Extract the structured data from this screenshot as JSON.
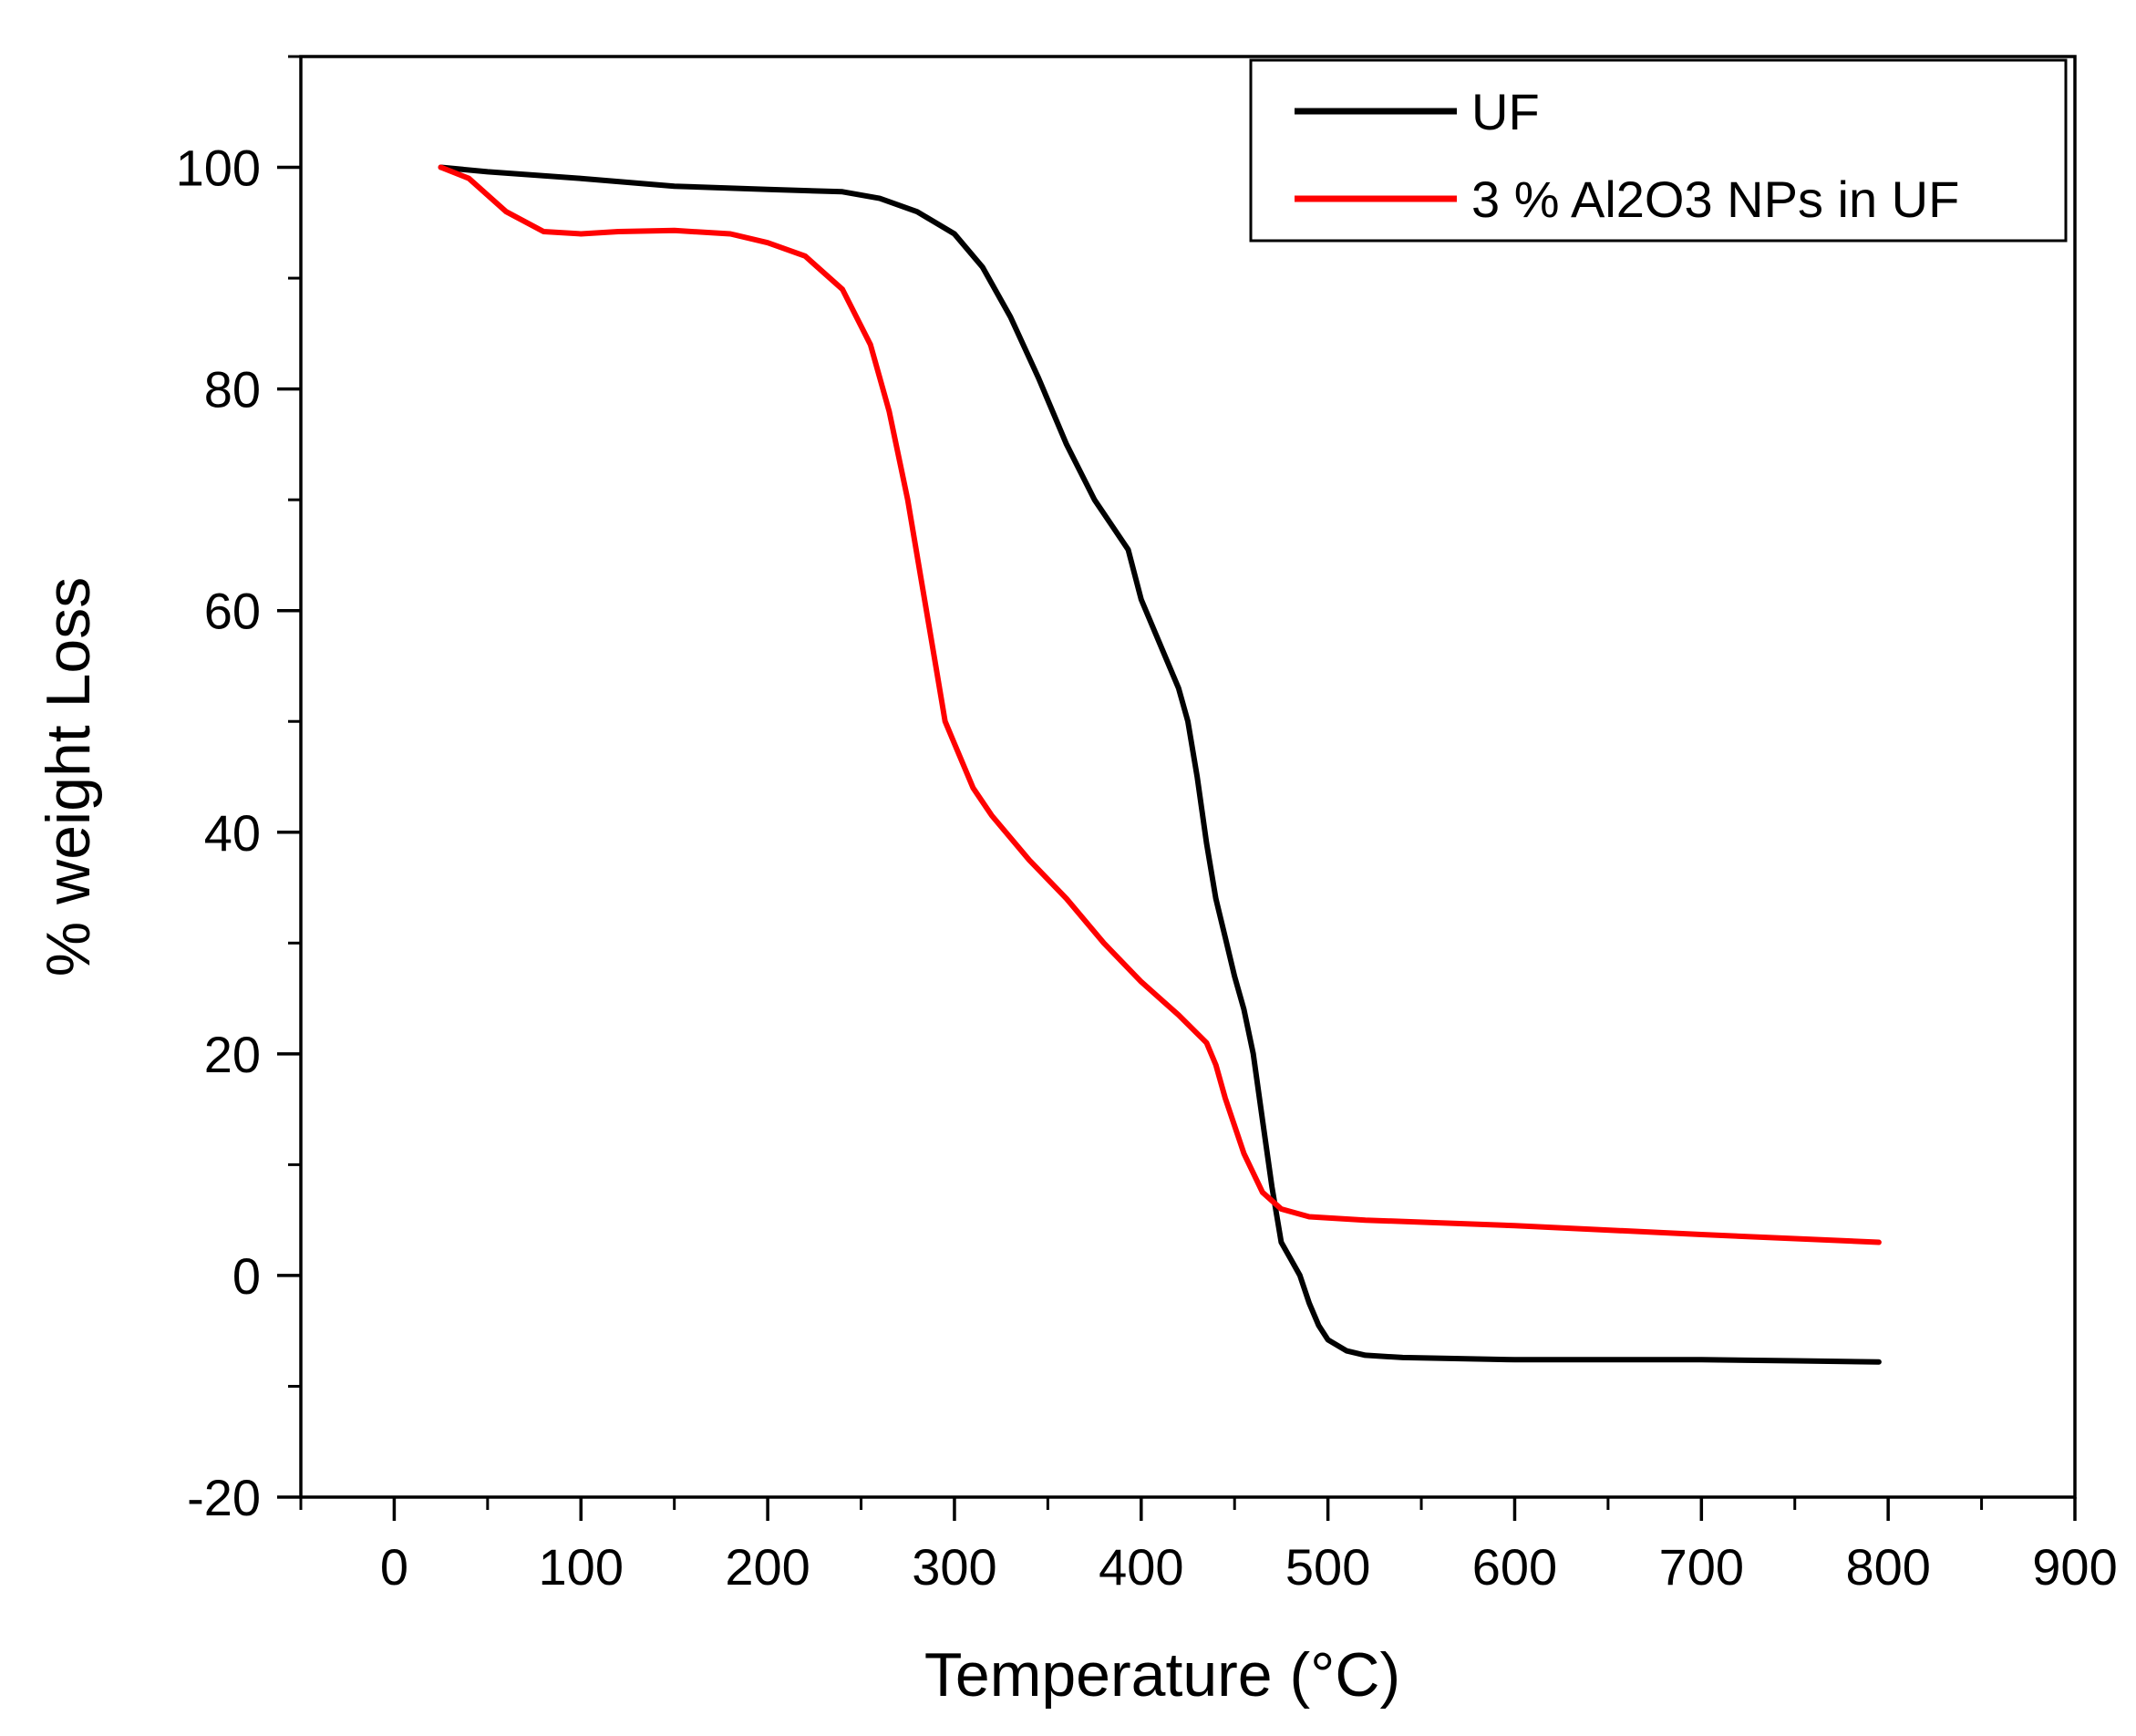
{
  "chart_data": {
    "type": "line",
    "xlabel": "Temperature (°C)",
    "ylabel": "% weight Loss",
    "xlim": [
      -50,
      900
    ],
    "ylim": [
      -20,
      110
    ],
    "xticks": [
      0,
      100,
      200,
      300,
      400,
      500,
      600,
      700,
      800,
      900
    ],
    "xtick_labels": [
      "0",
      "100",
      "200",
      "300",
      "400",
      "500",
      "600",
      "700",
      "800",
      "900"
    ],
    "yticks": [
      -20,
      0,
      20,
      40,
      60,
      80,
      100
    ],
    "ytick_labels": [
      "-20",
      "0",
      "20",
      "40",
      "60",
      "80",
      "100"
    ],
    "grid": false,
    "legend_position": "top-right",
    "series": [
      {
        "name": "UF",
        "color": "#000000",
        "x": [
          25,
          50,
          100,
          150,
          200,
          240,
          260,
          280,
          300,
          315,
          330,
          345,
          360,
          375,
          385,
          393,
          400,
          410,
          420,
          425,
          430,
          435,
          440,
          445,
          450,
          455,
          460,
          465,
          470,
          475,
          480,
          485,
          490,
          495,
          500,
          510,
          520,
          540,
          600,
          700,
          750,
          795
        ],
        "y": [
          100,
          99.6,
          99,
          98.3,
          98,
          97.8,
          97.2,
          96,
          94,
          91,
          86.5,
          81,
          75,
          70,
          67.5,
          65.5,
          61,
          57,
          53,
          50,
          45,
          39,
          34,
          30.5,
          27,
          24,
          20,
          14,
          8,
          3,
          1.5,
          0,
          -2.5,
          -4.5,
          -5.8,
          -6.8,
          -7.2,
          -7.4,
          -7.6,
          -7.6,
          -7.7,
          -7.8
        ]
      },
      {
        "name": "3 % Al2O3 NPs in UF",
        "color": "#ff0000",
        "x": [
          25,
          40,
          60,
          80,
          100,
          120,
          150,
          180,
          200,
          220,
          240,
          255,
          265,
          275,
          283,
          290,
          295,
          300,
          310,
          320,
          340,
          360,
          380,
          400,
          420,
          435,
          440,
          445,
          455,
          465,
          475,
          490,
          520,
          600,
          700,
          795
        ],
        "y": [
          100,
          99,
          96,
          94.2,
          94,
          94.2,
          94.3,
          94,
          93.2,
          92,
          89,
          84,
          78,
          70,
          62,
          55,
          50,
          48,
          44,
          41.5,
          37.5,
          34,
          30,
          26.5,
          23.5,
          21,
          19,
          16,
          11,
          7.5,
          6,
          5.3,
          5,
          4.5,
          3.7,
          3
        ]
      }
    ]
  }
}
